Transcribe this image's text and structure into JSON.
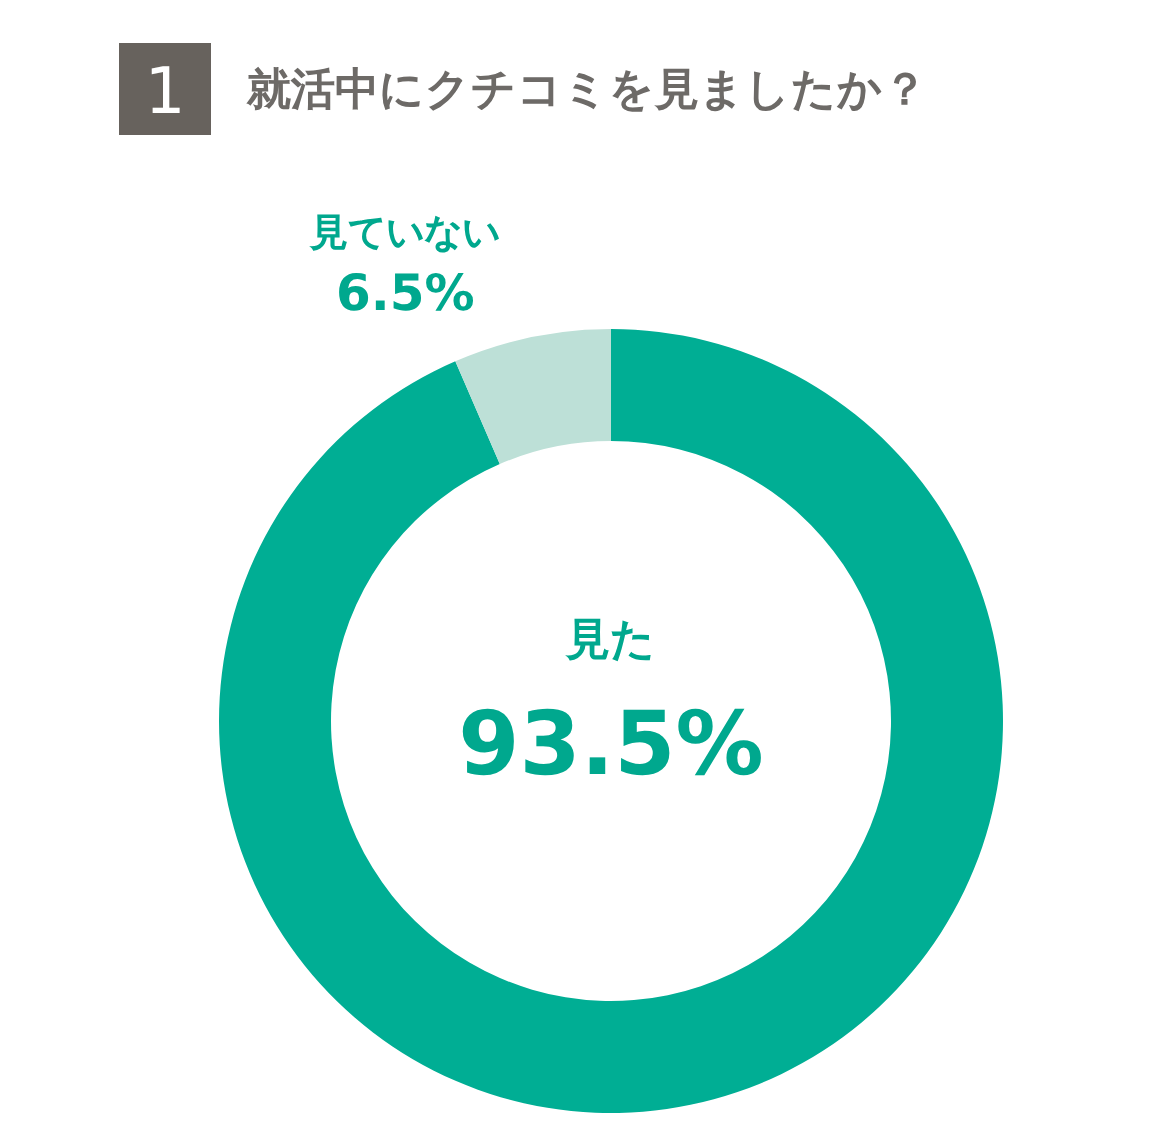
{
  "chart_data": {
    "type": "donut",
    "title": "就活中にクチコミを見ましたか？",
    "annotations": [
      "1"
    ],
    "categories": [
      "見た",
      "見ていない"
    ],
    "values": [
      93.5,
      6.5
    ],
    "colors": [
      "#00ae94",
      "#bde0d7"
    ],
    "value_labels": [
      "93.5%",
      "6.5%"
    ]
  }
}
